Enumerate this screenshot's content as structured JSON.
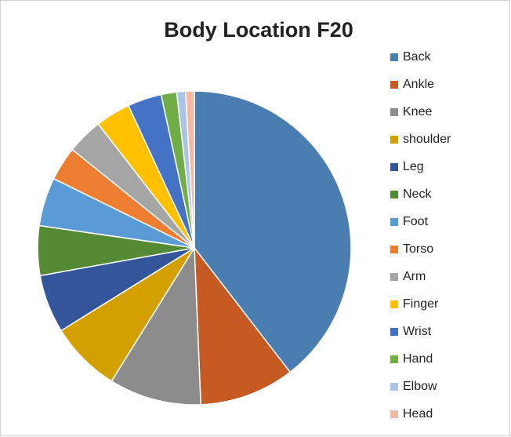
{
  "chart_data": {
    "type": "pie",
    "title": "Body Location F20",
    "categories": [
      "Back",
      "Ankle",
      "Knee",
      "shoulder",
      "Leg",
      "Neck",
      "Foot",
      "Torso",
      "Arm",
      "Finger",
      "Wrist",
      "Hand",
      "Elbow",
      "Head"
    ],
    "values": [
      39.5,
      9.8,
      9.5,
      7.3,
      6.0,
      5.1,
      5.0,
      3.5,
      3.7,
      3.6,
      3.5,
      1.6,
      0.9,
      0.9
    ],
    "colors": [
      "#4a7eb1",
      "#c55a22",
      "#8c8c8c",
      "#d4a000",
      "#33569b",
      "#558a35",
      "#5b9bd5",
      "#ed7d31",
      "#a5a5a5",
      "#ffc000",
      "#4472c4",
      "#70ad47",
      "#a9c4e6",
      "#f4b9a3"
    ],
    "legend": "right"
  }
}
